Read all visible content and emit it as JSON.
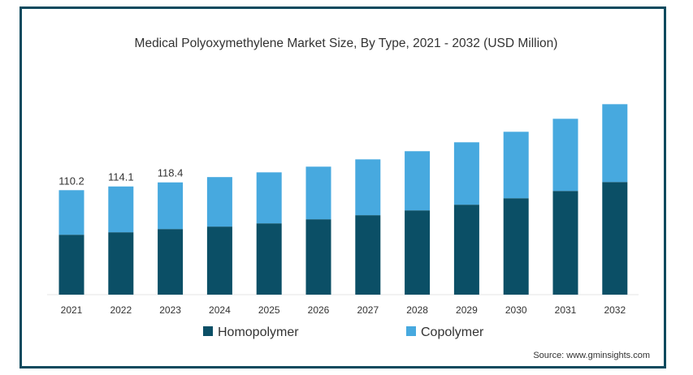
{
  "chart_data": {
    "type": "bar",
    "stacked": true,
    "title": "Medical Polyoxymethylene Market Size, By Type, 2021 - 2032 (USD Million)",
    "xlabel": "",
    "ylabel": "",
    "categories": [
      "2021",
      "2022",
      "2023",
      "2024",
      "2025",
      "2026",
      "2027",
      "2028",
      "2029",
      "2030",
      "2031",
      "2032"
    ],
    "series": [
      {
        "name": "Homopolymer",
        "color": "#0b4f66",
        "values": [
          63.2,
          65.8,
          69.2,
          71.8,
          75.2,
          79.5,
          83.8,
          88.9,
          94.9,
          101.7,
          109.4,
          118.8
        ]
      },
      {
        "name": "Copolymer",
        "color": "#47a9df",
        "values": [
          47.0,
          48.3,
          49.2,
          52.2,
          53.8,
          55.5,
          58.9,
          62.4,
          65.8,
          70.1,
          76.1,
          82.1
        ]
      }
    ],
    "data_labels": {
      "2021": "110.2",
      "2022": "114.1",
      "2023": "118.4"
    },
    "ylim": [
      0,
      210
    ],
    "grid": false,
    "legend_position": "bottom-center",
    "source": "Source: www.gminsights.com"
  }
}
